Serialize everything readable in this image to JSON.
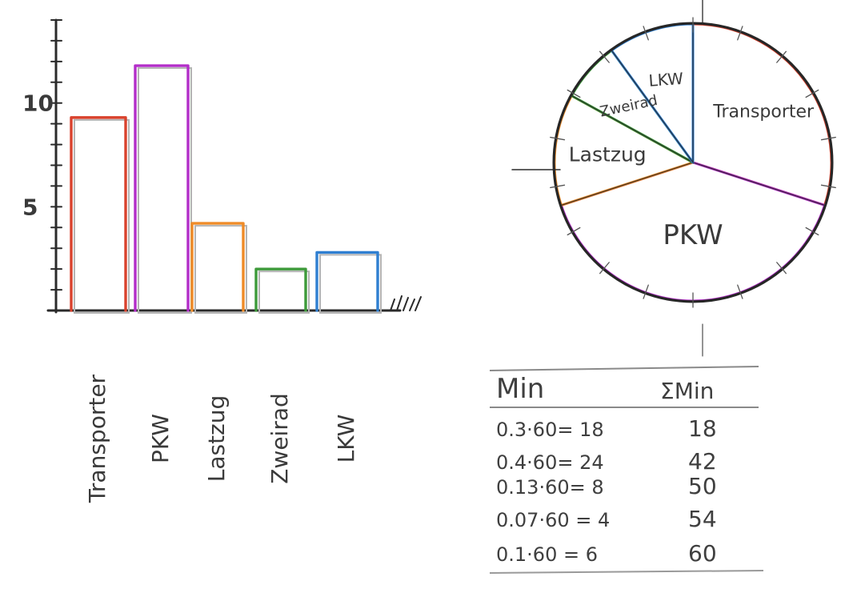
{
  "chart_data": [
    {
      "type": "bar",
      "categories": [
        "Transporter",
        "PKW",
        "Lastzug",
        "Zweirad",
        "LKW"
      ],
      "values": [
        9.3,
        11.8,
        4.2,
        2.0,
        2.8
      ],
      "ylim": [
        0,
        14
      ],
      "y_ticks": [
        "5",
        "10"
      ],
      "colors": [
        "#d9422d",
        "#b32ec9",
        "#ef8b27",
        "#3d9a3a",
        "#2f7fd1"
      ],
      "grid": false
    },
    {
      "type": "pie",
      "labels": [
        "Transporter",
        "PKW",
        "Lastzug",
        "Zweirad",
        "LKW"
      ],
      "values": [
        0.3,
        0.4,
        0.13,
        0.07,
        0.1
      ],
      "colors": [
        "#d9422d",
        "#b32ec9",
        "#ef8b27",
        "#3d9a3a",
        "#2f7fd1"
      ]
    },
    {
      "type": "table",
      "columns": [
        "Min",
        "ΣMin"
      ],
      "rows": [
        [
          "0.3·60= 18",
          "18"
        ],
        [
          "0.4·60= 24",
          "42"
        ],
        [
          "0.13·60= 8",
          "50"
        ],
        [
          "0.07·60 = 4",
          "54"
        ],
        [
          "0.1·60 = 6",
          "60"
        ]
      ]
    }
  ]
}
